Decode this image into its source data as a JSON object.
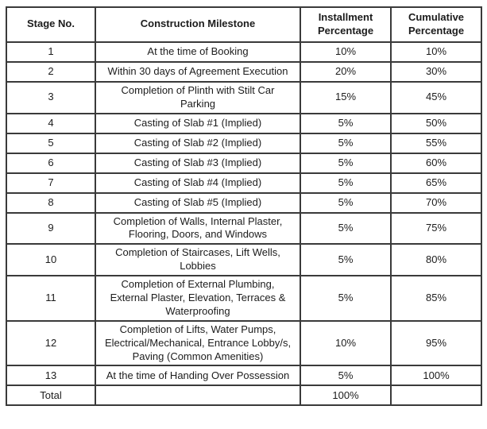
{
  "page": {
    "background_color": "#ffffff",
    "text_color": "#1c1c1c",
    "border_color": "#3a3a3a"
  },
  "table": {
    "name": "construction-payment-schedule",
    "columns": [
      {
        "key": "stage",
        "label": "Stage No."
      },
      {
        "key": "milestone",
        "label": "Construction Milestone"
      },
      {
        "key": "installment",
        "label": "Installment Percentage"
      },
      {
        "key": "cumulative",
        "label": "Cumulative Percentage"
      }
    ],
    "rows": [
      {
        "stage": "1",
        "milestone": "At the time of Booking",
        "installment": "10%",
        "cumulative": "10%"
      },
      {
        "stage": "2",
        "milestone": "Within 30 days of Agreement Execution",
        "installment": "20%",
        "cumulative": "30%"
      },
      {
        "stage": "3",
        "milestone": "Completion of Plinth with Stilt Car Parking",
        "installment": "15%",
        "cumulative": "45%"
      },
      {
        "stage": "4",
        "milestone": "Casting of Slab #1 (Implied)",
        "installment": "5%",
        "cumulative": "50%"
      },
      {
        "stage": "5",
        "milestone": "Casting of Slab #2 (Implied)",
        "installment": "5%",
        "cumulative": "55%"
      },
      {
        "stage": "6",
        "milestone": "Casting of Slab #3 (Implied)",
        "installment": "5%",
        "cumulative": "60%"
      },
      {
        "stage": "7",
        "milestone": "Casting of Slab #4 (Implied)",
        "installment": "5%",
        "cumulative": "65%"
      },
      {
        "stage": "8",
        "milestone": "Casting of Slab #5 (Implied)",
        "installment": "5%",
        "cumulative": "70%"
      },
      {
        "stage": "9",
        "milestone": "Completion of Walls, Internal Plaster, Flooring, Doors, and Windows",
        "installment": "5%",
        "cumulative": "75%"
      },
      {
        "stage": "10",
        "milestone": "Completion of Staircases, Lift Wells, Lobbies",
        "installment": "5%",
        "cumulative": "80%"
      },
      {
        "stage": "11",
        "milestone": "Completion of External Plumbing, External Plaster, Elevation, Terraces & Waterproofing",
        "installment": "5%",
        "cumulative": "85%"
      },
      {
        "stage": "12",
        "milestone": "Completion of Lifts, Water Pumps, Electrical/Mechanical, Entrance Lobby/s, Paving (Common Amenities)",
        "installment": "10%",
        "cumulative": "95%"
      },
      {
        "stage": "13",
        "milestone": "At the time of Handing Over Possession",
        "installment": "5%",
        "cumulative": "100%"
      },
      {
        "stage": "Total",
        "milestone": "",
        "installment": "100%",
        "cumulative": ""
      }
    ]
  }
}
